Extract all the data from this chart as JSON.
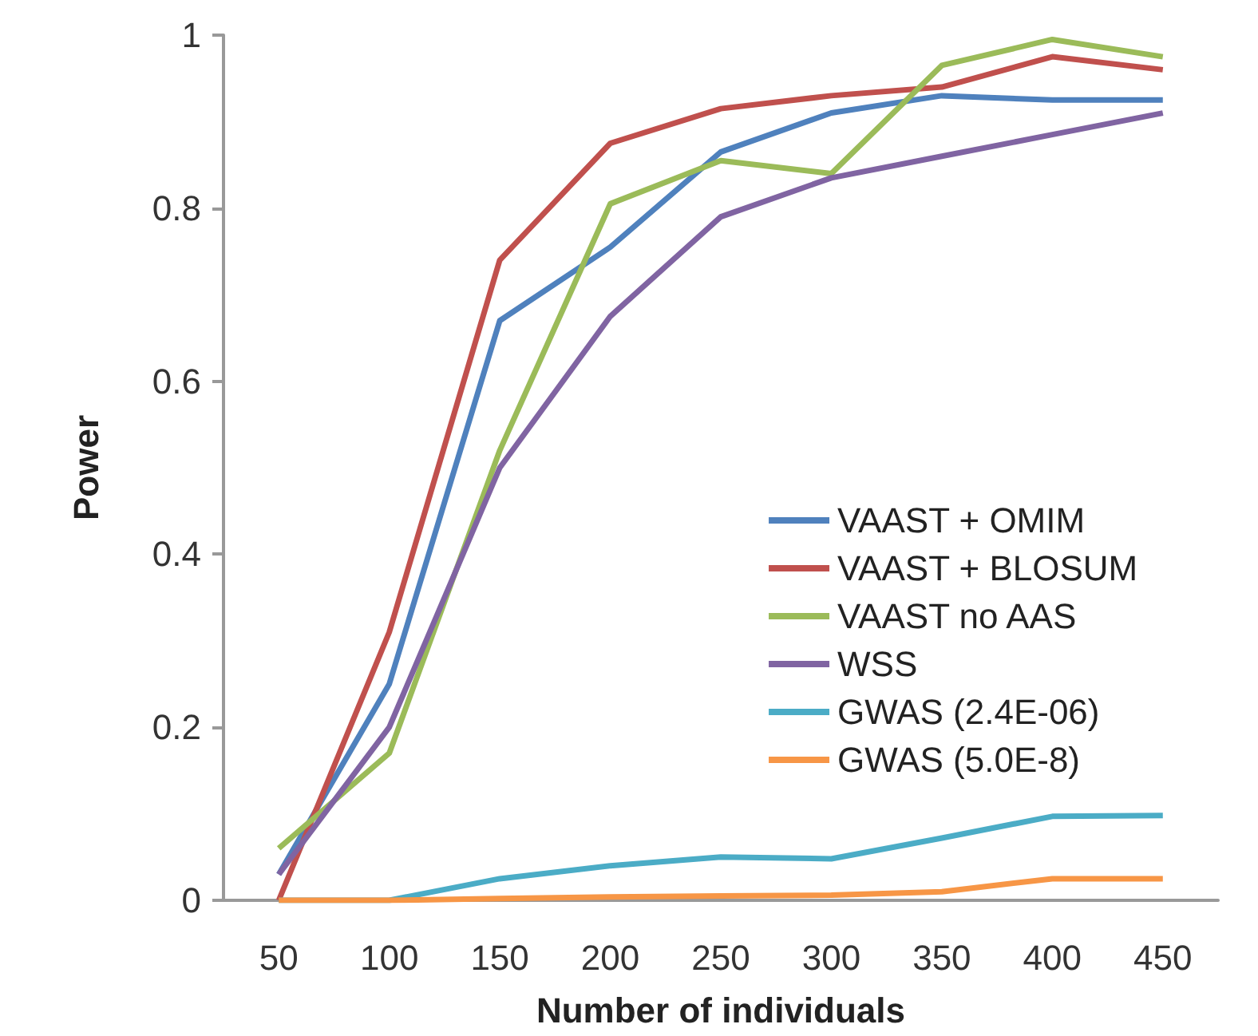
{
  "chart_data": {
    "type": "line",
    "xlabel": "Number of individuals",
    "ylabel": "Power",
    "categories": [
      "50",
      "100",
      "150",
      "200",
      "250",
      "300",
      "350",
      "400",
      "450"
    ],
    "series": [
      {
        "name": "VAAST + OMIM",
        "color": "#4f81bd",
        "values": [
          0.03,
          0.25,
          0.67,
          0.755,
          0.865,
          0.91,
          0.93,
          0.925,
          0.925
        ]
      },
      {
        "name": "VAAST + BLOSUM",
        "color": "#c0504d",
        "values": [
          0.0,
          0.31,
          0.74,
          0.875,
          0.915,
          0.93,
          0.94,
          0.975,
          0.96
        ]
      },
      {
        "name": "VAAST no AAS",
        "color": "#9bbb59",
        "values": [
          0.06,
          0.17,
          0.52,
          0.805,
          0.855,
          0.84,
          0.965,
          0.995,
          0.975
        ]
      },
      {
        "name": "WSS",
        "color": "#8064a2",
        "values": [
          0.03,
          0.2,
          0.5,
          0.675,
          0.79,
          0.835,
          0.86,
          0.885,
          0.91
        ]
      },
      {
        "name": "GWAS (2.4E-06)",
        "color": "#4bacc6",
        "values": [
          0.0,
          0.0,
          0.025,
          0.04,
          0.05,
          0.048,
          0.072,
          0.097,
          0.098
        ]
      },
      {
        "name": "GWAS (5.0E-8)",
        "color": "#f79646",
        "values": [
          0.0,
          0.0,
          0.002,
          0.004,
          0.005,
          0.006,
          0.01,
          0.025,
          0.025
        ]
      }
    ],
    "ylim": [
      0,
      1
    ],
    "yticks": [
      0,
      0.2,
      0.4,
      0.6,
      0.8,
      1
    ],
    "grid": false,
    "legend": "right",
    "marker": "none",
    "line_style": "solid"
  }
}
